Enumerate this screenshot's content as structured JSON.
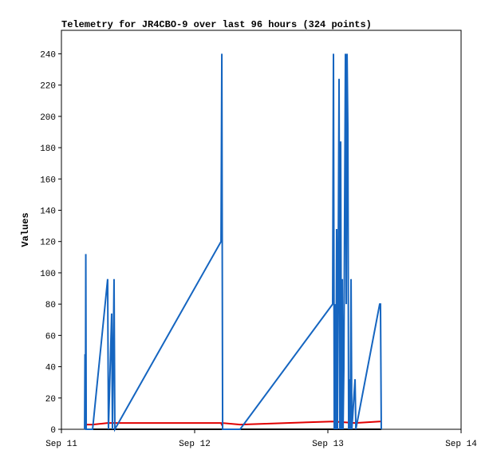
{
  "chart_data": {
    "type": "line",
    "title": "Telemetry for JR4CBO-9 over last 96 hours (324 points)",
    "y_label": "Values",
    "xlim": [
      11,
      14
    ],
    "xticks": [
      {
        "value": 11,
        "label": "Sep 11"
      },
      {
        "value": 12,
        "label": "Sep 12"
      },
      {
        "value": 13,
        "label": "Sep 13"
      },
      {
        "value": 14,
        "label": "Sep 14"
      }
    ],
    "ylim": [
      0,
      255
    ],
    "yticks": [
      0,
      20,
      40,
      60,
      80,
      100,
      120,
      140,
      160,
      180,
      200,
      220,
      240
    ],
    "series": [
      {
        "color": "#000000",
        "x": [
          11.18,
          13.401
        ],
        "values": [
          0,
          0
        ]
      },
      {
        "color": "#e00000",
        "x": [
          11.18,
          11.234,
          11.347,
          11.401,
          12.198,
          12.204,
          12.21,
          12.341,
          13.036,
          13.204,
          13.389,
          13.401
        ],
        "values": [
          3,
          3,
          4,
          4,
          4,
          3,
          4,
          3,
          5,
          4,
          5,
          5
        ]
      },
      {
        "color": "#1565c0",
        "x": [
          11.174,
          11.177,
          11.18,
          11.183,
          11.186,
          11.234,
          11.347,
          11.353,
          11.377,
          11.383,
          11.395,
          11.401,
          12.198,
          12.204,
          12.21,
          12.341,
          13.036,
          13.042,
          13.048,
          13.054,
          13.06,
          13.066,
          13.072,
          13.078,
          13.084,
          13.09,
          13.096,
          13.102,
          13.108,
          13.114,
          13.12,
          13.126,
          13.132,
          13.138,
          13.144,
          13.15,
          13.156,
          13.162,
          13.168,
          13.174,
          13.18,
          13.204,
          13.21,
          13.389,
          13.395,
          13.401
        ],
        "values": [
          0,
          48,
          0,
          112,
          0,
          0,
          96,
          0,
          74,
          0,
          96,
          0,
          120,
          240,
          0,
          0,
          80,
          240,
          0,
          80,
          0,
          128,
          0,
          112,
          224,
          0,
          184,
          0,
          96,
          0,
          40,
          144,
          240,
          80,
          240,
          192,
          0,
          32,
          0,
          96,
          0,
          32,
          0,
          80,
          80,
          0
        ]
      }
    ]
  }
}
